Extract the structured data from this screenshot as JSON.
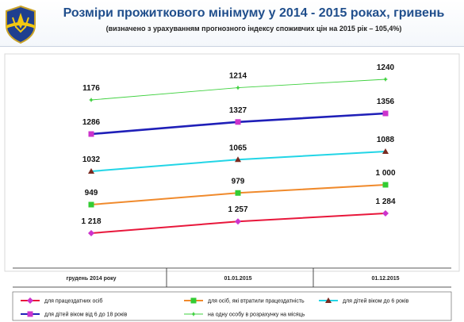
{
  "header": {
    "title": "Розміри прожиткового мінімуму у 2014 - 2015 роках, гривень",
    "subtitle": "(визначено з урахуванням прогнозного індексу споживчих цін на 2015 рік – 105,4%)"
  },
  "chart_data": {
    "type": "line",
    "categories": [
      "грудень 2014 року",
      "01.01.2015",
      "01.12.2015"
    ],
    "series": [
      {
        "name": "на одну особу в розрахунку на місяць",
        "values": [
          1176,
          1214,
          1240
        ],
        "labels": [
          "1176",
          "1214",
          "1240"
        ],
        "color": "#3fd13f",
        "marker": "star"
      },
      {
        "name": "для дітей віком від 6 до 18 років",
        "values": [
          1286,
          1327,
          1356
        ],
        "labels": [
          "1286",
          "1327",
          "1356"
        ],
        "color": "#1f1fb8",
        "marker": "square",
        "marker_color": "#cc33cc"
      },
      {
        "name": "для дітей віком до 6 років",
        "values": [
          1032,
          1065,
          1088
        ],
        "labels": [
          "1032",
          "1065",
          "1088"
        ],
        "color": "#22d5e6",
        "marker": "triangle",
        "marker_color": "#7a2a20"
      },
      {
        "name": "для осіб, які втратили працездатність",
        "values": [
          949,
          979,
          1000
        ],
        "labels": [
          "949",
          "979",
          "1 000"
        ],
        "color": "#f08a2c",
        "marker": "square",
        "marker_color": "#33cc33"
      },
      {
        "name": "для працездатних осіб",
        "values": [
          1218,
          1257,
          1284
        ],
        "labels": [
          "1 218",
          "1 257",
          "1 284"
        ],
        "color": "#e8173b",
        "marker": "diamond",
        "marker_color": "#cc33cc"
      }
    ],
    "legend": [
      {
        "series": 4,
        "label": "для працездатних осіб"
      },
      {
        "series": 3,
        "label": "для осіб, які втратили працездатність"
      },
      {
        "series": 2,
        "label": "для дітей віком до 6 років"
      },
      {
        "series": 1,
        "label": "для дітей віком від 6 до 18 років"
      },
      {
        "series": 0,
        "label": "на одну особу в розрахунку на місяць"
      }
    ],
    "legend_position": "bottom",
    "grid": false
  }
}
